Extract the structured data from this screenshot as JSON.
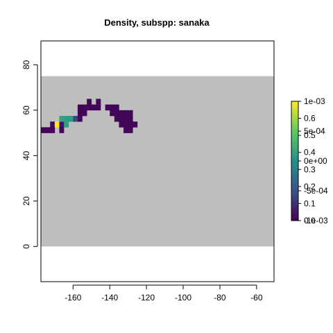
{
  "chart_data": {
    "type": "heatmap",
    "title": "Density, subspp: sanaka",
    "xlabel": "",
    "ylabel": "",
    "xlim": [
      -177.5,
      -50.5
    ],
    "ylim": [
      -15.5,
      90.5
    ],
    "x_ticks": [
      -160,
      -140,
      -120,
      -100,
      -80,
      -60
    ],
    "y_ticks": [
      0,
      20,
      40,
      60,
      80
    ],
    "x_tick_labels": [
      "-160",
      "-140",
      "-120",
      "-100",
      "-80",
      "-60"
    ],
    "y_tick_labels": [
      "0",
      "20",
      "40",
      "60",
      "80"
    ],
    "background_region": {
      "x": [
        -177.5,
        -50.5
      ],
      "y": [
        0,
        75
      ],
      "color": "#bebebe"
    },
    "grid": false,
    "cell_size_deg": 2.5,
    "colormap": "viridis",
    "cells": [
      {
        "x": -176.25,
        "y": 51.25,
        "v": 0.02
      },
      {
        "x": -173.75,
        "y": 51.25,
        "v": 0.02
      },
      {
        "x": -171.25,
        "y": 51.25,
        "v": 0.02
      },
      {
        "x": -171.25,
        "y": 53.75,
        "v": 0.03
      },
      {
        "x": -168.75,
        "y": 53.75,
        "v": 1.0
      },
      {
        "x": -166.25,
        "y": 53.75,
        "v": 0.05
      },
      {
        "x": -163.75,
        "y": 53.75,
        "v": 0.55
      },
      {
        "x": -166.25,
        "y": 51.25,
        "v": 0.02
      },
      {
        "x": -166.25,
        "y": 56.25,
        "v": 0.58
      },
      {
        "x": -163.75,
        "y": 56.25,
        "v": 0.55
      },
      {
        "x": -161.25,
        "y": 56.25,
        "v": 0.55
      },
      {
        "x": -158.75,
        "y": 56.25,
        "v": 0.22
      },
      {
        "x": -156.25,
        "y": 56.25,
        "v": 0.03
      },
      {
        "x": -156.25,
        "y": 58.75,
        "v": 0.02
      },
      {
        "x": -153.75,
        "y": 58.75,
        "v": 0.02
      },
      {
        "x": -156.25,
        "y": 61.25,
        "v": 0.02
      },
      {
        "x": -153.75,
        "y": 61.25,
        "v": 0.02
      },
      {
        "x": -151.25,
        "y": 61.25,
        "v": 0.02
      },
      {
        "x": -148.75,
        "y": 61.25,
        "v": 0.02
      },
      {
        "x": -146.25,
        "y": 61.25,
        "v": 0.02
      },
      {
        "x": -151.25,
        "y": 63.75,
        "v": 0.02
      },
      {
        "x": -146.25,
        "y": 63.75,
        "v": 0.02
      },
      {
        "x": -141.25,
        "y": 61.25,
        "v": 0.02
      },
      {
        "x": -138.75,
        "y": 61.25,
        "v": 0.02
      },
      {
        "x": -136.25,
        "y": 61.25,
        "v": 0.02
      },
      {
        "x": -138.75,
        "y": 58.75,
        "v": 0.02
      },
      {
        "x": -136.25,
        "y": 58.75,
        "v": 0.02
      },
      {
        "x": -133.75,
        "y": 58.75,
        "v": 0.02
      },
      {
        "x": -136.25,
        "y": 56.25,
        "v": 0.02
      },
      {
        "x": -133.75,
        "y": 56.25,
        "v": 0.02
      },
      {
        "x": -131.25,
        "y": 56.25,
        "v": 0.02
      },
      {
        "x": -128.75,
        "y": 56.25,
        "v": 0.02
      },
      {
        "x": -131.25,
        "y": 58.75,
        "v": 0.02
      },
      {
        "x": -128.75,
        "y": 58.75,
        "v": 0.02
      },
      {
        "x": -133.75,
        "y": 53.75,
        "v": 0.02
      },
      {
        "x": -131.25,
        "y": 53.75,
        "v": 0.02
      },
      {
        "x": -128.75,
        "y": 53.75,
        "v": 0.02
      },
      {
        "x": -126.25,
        "y": 53.75,
        "v": 0.02
      },
      {
        "x": -131.25,
        "y": 51.25,
        "v": 0.02
      },
      {
        "x": -128.75,
        "y": 51.25,
        "v": 0.02
      }
    ],
    "legend": {
      "placement": "right",
      "scale_a": {
        "range": [
          0.0,
          0.7
        ],
        "ticks": [
          0.0,
          0.1,
          0.2,
          0.3,
          0.4,
          0.5,
          0.6
        ],
        "labels": [
          "0.0",
          "0.1",
          "0.2",
          "0.3",
          "0.4",
          "0.5",
          "0.6"
        ]
      },
      "scale_b": {
        "range": [
          -0.001,
          0.001
        ],
        "ticks": [
          -0.001,
          -0.0005,
          0.0,
          0.0005,
          0.001
        ],
        "labels": [
          "-1e-03",
          "-5e-04",
          "0e+00",
          "5e-04",
          "1e-03"
        ]
      }
    }
  }
}
